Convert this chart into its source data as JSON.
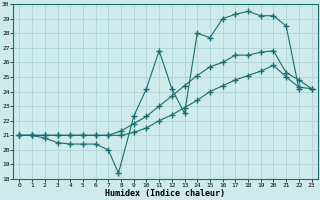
{
  "xlabel": "Humidex (Indice chaleur)",
  "bg_color": "#ceeaea",
  "grid_color": "#aad0d0",
  "line_color": "#1a6e6e",
  "xlim": [
    -0.5,
    23.5
  ],
  "ylim": [
    18,
    30
  ],
  "xticks": [
    0,
    1,
    2,
    3,
    4,
    5,
    6,
    7,
    8,
    9,
    10,
    11,
    12,
    13,
    14,
    15,
    16,
    17,
    18,
    19,
    20,
    21,
    22,
    23
  ],
  "yticks": [
    18,
    19,
    20,
    21,
    22,
    23,
    24,
    25,
    26,
    27,
    28,
    29,
    30
  ],
  "line1_x": [
    0,
    1,
    2,
    3,
    4,
    5,
    6,
    7,
    7.8,
    9,
    10,
    11,
    12,
    13,
    14,
    15,
    16,
    17,
    18,
    19,
    20,
    21,
    22
  ],
  "line1_y": [
    21.0,
    21.0,
    20.8,
    20.5,
    20.4,
    20.4,
    20.4,
    20.0,
    18.4,
    22.3,
    24.2,
    26.8,
    24.2,
    22.5,
    28.0,
    27.7,
    29.0,
    29.3,
    29.5,
    29.2,
    29.2,
    28.5,
    24.2
  ],
  "line2_x": [
    0,
    1,
    2,
    3,
    4,
    5,
    6,
    7,
    8,
    9,
    10,
    11,
    12,
    13,
    14,
    15,
    16,
    17,
    18,
    19,
    20,
    21,
    22,
    23
  ],
  "line2_y": [
    21.0,
    21.0,
    21.0,
    21.0,
    21.0,
    21.0,
    21.0,
    21.0,
    21.3,
    21.8,
    22.3,
    23.0,
    23.7,
    24.4,
    25.1,
    25.7,
    26.0,
    26.5,
    26.5,
    26.7,
    26.8,
    25.3,
    24.8,
    24.2
  ],
  "line3_x": [
    0,
    1,
    2,
    3,
    4,
    5,
    6,
    7,
    8,
    9,
    10,
    11,
    12,
    13,
    14,
    15,
    16,
    17,
    18,
    19,
    20,
    21,
    22,
    23
  ],
  "line3_y": [
    21.0,
    21.0,
    21.0,
    21.0,
    21.0,
    21.0,
    21.0,
    21.0,
    21.0,
    21.2,
    21.5,
    22.0,
    22.4,
    22.9,
    23.4,
    24.0,
    24.4,
    24.8,
    25.1,
    25.4,
    25.8,
    25.0,
    24.3,
    24.2
  ]
}
